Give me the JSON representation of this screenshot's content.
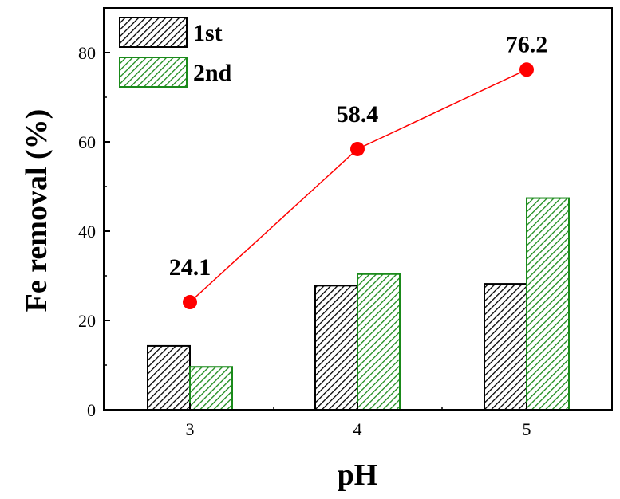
{
  "chart_data": {
    "type": "bar",
    "xlabel": "pH",
    "ylabel": "Fe removal (%)",
    "categories": [
      "3",
      "4",
      "5"
    ],
    "ylim": [
      0,
      90
    ],
    "yticks": [
      0,
      20,
      40,
      60,
      80
    ],
    "grid": false,
    "legend_position": "top-left",
    "series": [
      {
        "name": "1st",
        "kind": "bar",
        "values": [
          14.3,
          27.8,
          28.2
        ],
        "color": "#000000",
        "hatch": "diagonal"
      },
      {
        "name": "2nd",
        "kind": "bar",
        "values": [
          9.6,
          30.4,
          47.4
        ],
        "color": "#1a8a1a",
        "hatch": "diagonal"
      },
      {
        "kind": "line",
        "values": [
          24.1,
          58.4,
          76.2
        ],
        "labels": [
          "24.1",
          "58.4",
          "76.2"
        ],
        "color": "#ff0000",
        "marker": "circle"
      }
    ]
  }
}
